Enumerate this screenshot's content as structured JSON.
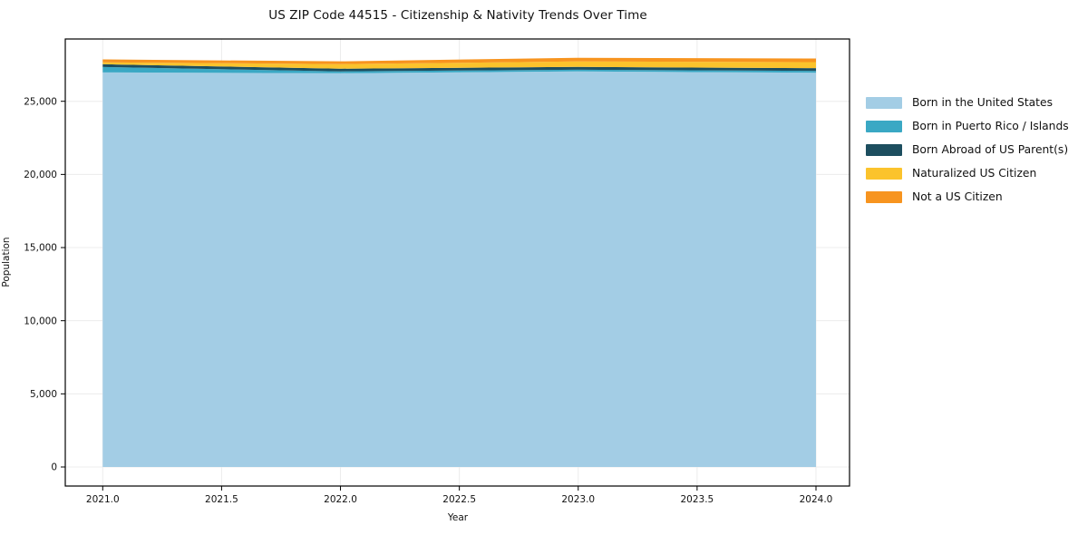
{
  "chart_data": {
    "type": "area",
    "title": "US ZIP Code 44515 - Citizenship & Nativity Trends Over Time",
    "xlabel": "Year",
    "ylabel": "Population",
    "x": [
      2021,
      2022,
      2023,
      2024
    ],
    "series": [
      {
        "name": "Born in the United States",
        "color": "#a3cde5",
        "values": [
          26975,
          26920,
          27040,
          26950
        ]
      },
      {
        "name": "Born in Puerto Rico / Islands",
        "color": "#3aa8c4",
        "values": [
          370,
          125,
          120,
          125
        ]
      },
      {
        "name": "Born Abroad of US Parent(s)",
        "color": "#1d4e5f",
        "values": [
          190,
          185,
          190,
          190
        ]
      },
      {
        "name": "Naturalized US Citizen",
        "color": "#fbc32c",
        "values": [
          130,
          310,
          375,
          410
        ]
      },
      {
        "name": "Not a US Citizen",
        "color": "#f7941f",
        "values": [
          195,
          190,
          250,
          250
        ]
      }
    ],
    "x_ticks": [
      "2021.0",
      "2021.5",
      "2022.0",
      "2022.5",
      "2023.0",
      "2023.5",
      "2024.0"
    ],
    "x_tick_values": [
      2021,
      2021.5,
      2022,
      2022.5,
      2023,
      2023.5,
      2024
    ],
    "y_ticks": [
      "0",
      "5,000",
      "10,000",
      "15,000",
      "20,000",
      "25,000"
    ],
    "y_tick_values": [
      0,
      5000,
      10000,
      15000,
      20000,
      25000
    ],
    "xlim": [
      2020.85,
      2024.15
    ],
    "ylim_top": 29250,
    "grid": true,
    "legend_position": "right",
    "colors": {
      "spine": "#000000",
      "gridline": "#ececec",
      "text": "#111111"
    }
  }
}
